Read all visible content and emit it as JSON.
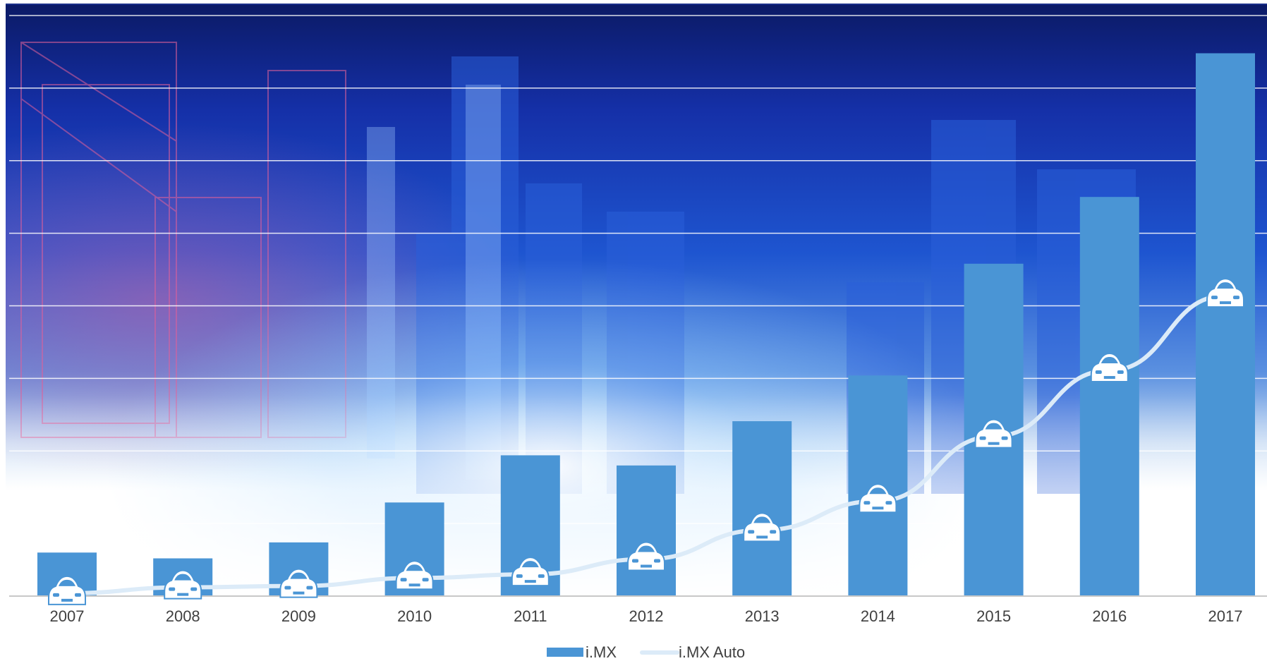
{
  "chart_data": {
    "type": "bar",
    "categories": [
      "2007",
      "2008",
      "2009",
      "2010",
      "2011",
      "2012",
      "2013",
      "2014",
      "2015",
      "2016",
      "2017"
    ],
    "series": [
      {
        "name": "i.MX",
        "kind": "bar",
        "color": "#4A95D5",
        "values": [
          0.6,
          0.52,
          0.74,
          1.29,
          1.94,
          1.8,
          2.41,
          3.04,
          4.58,
          5.5,
          7.48
        ]
      },
      {
        "name": "i.MX Auto",
        "kind": "line",
        "color": "#DCEBF8",
        "values": [
          0.04,
          0.12,
          0.14,
          0.25,
          0.3,
          0.51,
          0.91,
          1.31,
          2.2,
          3.11,
          4.14
        ]
      }
    ],
    "ylim": [
      0,
      8
    ],
    "gridlines": true,
    "legend_position": "bottom-center",
    "line_marker": "car-icon",
    "title": "",
    "xlabel": "",
    "ylabel": ""
  },
  "colors": {
    "sky_dark": "#0a1a5c",
    "sky_mid": "#1848c8",
    "glow": "#7fb8f0",
    "gridline": "#ffffff",
    "axis": "#c8c8c8"
  }
}
